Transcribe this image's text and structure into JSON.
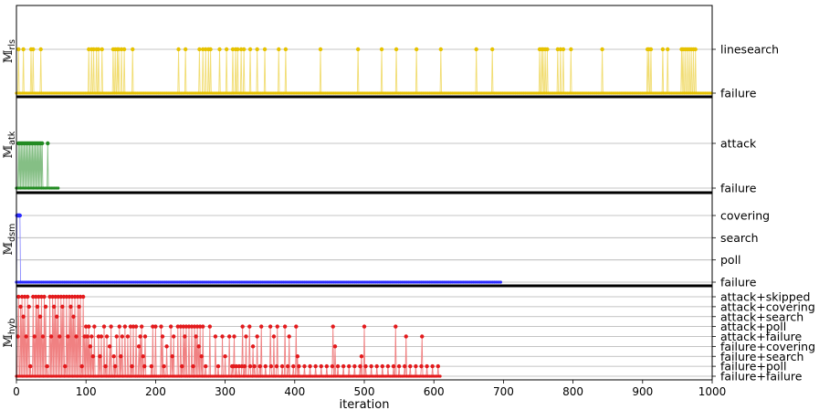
{
  "chart_data": {
    "type": "line",
    "xlabel": "iteration",
    "xlim": [
      0,
      1000
    ],
    "xticks": [
      0,
      100,
      200,
      300,
      400,
      500,
      600,
      700,
      800,
      900,
      1000
    ],
    "panels": [
      {
        "id": "rls",
        "ylabel_main": "𝕄",
        "ylabel_sub": "rls",
        "color": "#e6c200",
        "states": [
          "failure",
          "linesearch"
        ],
        "final_iteration": 1000,
        "events": [
          {
            "state": 1,
            "x": [
              3,
              10,
              21,
              24,
              35,
              104,
              108,
              111,
              115,
              118,
              123,
              139,
              142,
              145,
              147,
              151,
              155,
              167,
              233,
              243,
              263,
              268,
              272,
              276,
              279,
              292,
              302,
              311,
              315,
              318,
              323,
              327,
              336,
              346,
              357,
              377,
              387,
              437,
              491,
              525,
              546,
              575,
              610,
              661,
              684,
              752,
              755,
              757,
              760,
              763,
              778,
              782,
              786,
              797,
              842,
              907,
              909,
              912,
              929,
              936,
              956,
              958,
              961,
              964,
              967,
              970,
              973,
              976
            ]
          }
        ]
      },
      {
        "id": "atk",
        "ylabel_main": "𝕄",
        "ylabel_sub": "atk",
        "color": "#228b22",
        "states": [
          "failure",
          "attack"
        ],
        "final_iteration": 60,
        "events": [
          {
            "state": 1,
            "x": [
              3,
              5,
              7,
              9,
              11,
              13,
              15,
              17,
              19,
              21,
              23,
              25,
              27,
              29,
              31,
              33,
              35,
              37,
              45
            ]
          }
        ]
      },
      {
        "id": "dsm",
        "ylabel_main": "𝕄",
        "ylabel_sub": "dsm",
        "color": "#2b2bff",
        "states": [
          "failure",
          "poll",
          "search",
          "covering"
        ],
        "final_iteration": 697,
        "events": [
          {
            "state": 3,
            "x": [
              1,
              2,
              3,
              4,
              5
            ]
          },
          {
            "state": 0,
            "x": [
              7,
              12,
              18,
              27,
              34,
              45,
              58,
              72,
              88,
              96,
              115,
              124,
              133,
              141,
              152,
              161,
              170,
              189,
              198,
              206,
              214,
              222,
              233,
              241,
              252,
              268,
              276,
              287,
              296,
              309,
              321,
              330,
              342,
              353,
              362,
              377,
              390,
              401,
              414,
              422,
              431,
              446,
              454,
              463,
              477,
              485,
              498,
              506,
              520,
              531,
              544,
              553,
              562,
              574,
              586,
              596,
              608,
              617,
              626,
              638,
              647,
              658,
              668,
              677,
              689
            ]
          }
        ]
      },
      {
        "id": "hyb",
        "ylabel_main": "𝕄",
        "ylabel_sub": "hyb",
        "color": "#e31a1c",
        "states": [
          "failure+failure",
          "failure+poll",
          "failure+search",
          "failure+covering",
          "attack+failure",
          "attack+poll",
          "attack+search",
          "attack+covering",
          "attack+skipped"
        ],
        "final_iteration": 609,
        "events": [
          {
            "state": 8,
            "x": [
              3,
              8,
              12,
              16,
              20,
              24,
              28,
              32,
              36,
              40,
              44,
              48,
              52,
              56,
              60,
              64,
              68,
              72,
              76,
              80,
              84,
              88,
              92,
              96
            ]
          },
          {
            "state": 7,
            "x": [
              6,
              18,
              30,
              42,
              54,
              66,
              78,
              90
            ]
          },
          {
            "state": 6,
            "x": [
              10,
              34,
              58,
              82
            ]
          },
          {
            "state": 5,
            "x": [
              100,
              104,
              112,
              126,
              136,
              148,
              152,
              156,
              160,
              164,
              168,
              172,
              176,
              180,
              196,
              200,
              208,
              222,
              232,
              236,
              240,
              244,
              248,
              252,
              256,
              260,
              264,
              268,
              272,
              278,
              290,
              300,
              316,
              320,
              325,
              335,
              352,
              365,
              375,
              386,
              402,
              455,
              470,
              500,
              545,
              590
            ]
          },
          {
            "state": 4,
            "x": [
              2,
              14,
              26,
              38,
              50,
              62,
              74,
              86,
              98,
              102,
              108,
              118,
              122,
              130,
              144,
              152,
              160,
              178,
              185,
              210,
              226,
              242,
              258,
              286,
              296,
              306,
              313,
              330,
              346,
              370,
              392,
              430,
              496,
              560,
              583
            ]
          },
          {
            "state": 3,
            "x": [
              106,
              134,
              176,
              216,
              262,
              340,
              458,
              526
            ]
          },
          {
            "state": 2,
            "x": [
              110,
              120,
              140,
              150,
              182,
              224,
              266,
              300,
              404,
              496
            ]
          },
          {
            "state": 1,
            "x": [
              20,
              44,
              70,
              94,
              128,
              142,
              166,
              184,
              194,
              212,
              238,
              254,
              272,
              290,
              310,
              312,
              316,
              320,
              324,
              328,
              336,
              342,
              350,
              358,
              366,
              374,
              382,
              390,
              398,
              406,
              414,
              422,
              430,
              438,
              446,
              454,
              462,
              470,
              478,
              486,
              494,
              502,
              510,
              518,
              526,
              534,
              542,
              550,
              558,
              566,
              574,
              582,
              590,
              598,
              606
            ]
          }
        ]
      }
    ]
  }
}
